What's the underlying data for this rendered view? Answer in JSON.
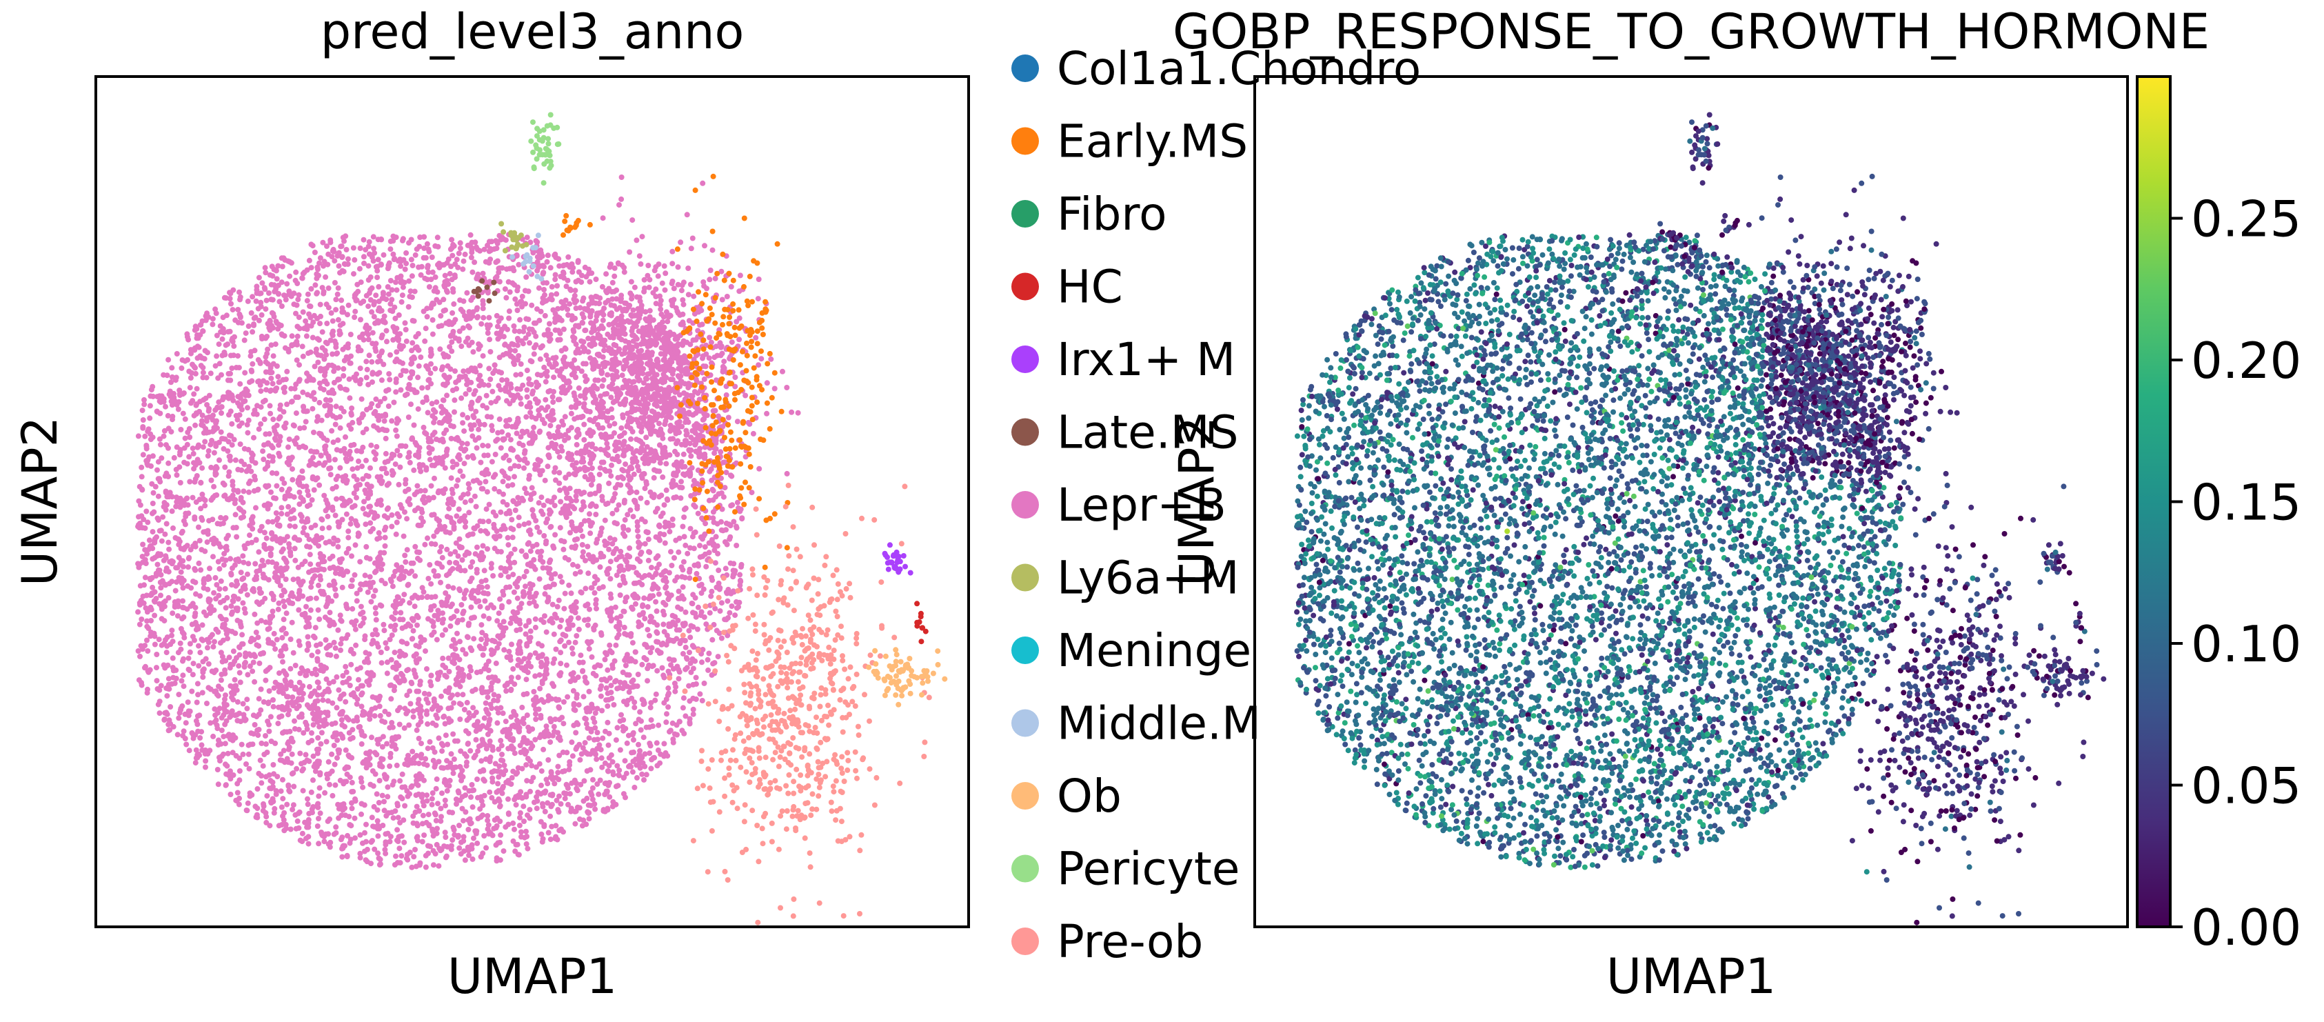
{
  "chart_data": [
    {
      "type": "scatter",
      "title": "pred_level3_anno",
      "xlabel": "UMAP1",
      "ylabel": "UMAP2",
      "grid": false,
      "legend_placement": "right",
      "legend": [
        {
          "label": "Col1a1.Chondro",
          "color": "#1f77b4"
        },
        {
          "label": "Early.MS",
          "color": "#ff7f0e"
        },
        {
          "label": "Fibro",
          "color": "#279e68"
        },
        {
          "label": "HC",
          "color": "#d62728"
        },
        {
          "label": "Irx1+ M",
          "color": "#aa40fc"
        },
        {
          "label": "Late.MS",
          "color": "#8c564b"
        },
        {
          "label": "Lepr+B",
          "color": "#e377c2"
        },
        {
          "label": "Ly6a+M",
          "color": "#b5bd61"
        },
        {
          "label": "Meninge",
          "color": "#17becf"
        },
        {
          "label": "Middle.M",
          "color": "#aec7e8"
        },
        {
          "label": "Ob",
          "color": "#ffbb78"
        },
        {
          "label": "Pericyte",
          "color": "#98df8a"
        },
        {
          "label": "Pre-ob",
          "color": "#ff9896"
        }
      ]
    },
    {
      "type": "scatter",
      "title": "GOBP_RESPONSE_TO_GROWTH_HORMONE",
      "xlabel": "UMAP1",
      "ylabel": "UMAP2",
      "grid": false,
      "colorbar": {
        "colormap": "viridis",
        "range": [
          0.0,
          0.3
        ],
        "ticks": [
          {
            "value": 0.0,
            "label": "0.00"
          },
          {
            "value": 0.05,
            "label": "0.05"
          },
          {
            "value": 0.1,
            "label": "0.10"
          },
          {
            "value": 0.15,
            "label": "0.15"
          },
          {
            "value": 0.2,
            "label": "0.20"
          },
          {
            "value": 0.25,
            "label": "0.25"
          }
        ]
      }
    }
  ]
}
